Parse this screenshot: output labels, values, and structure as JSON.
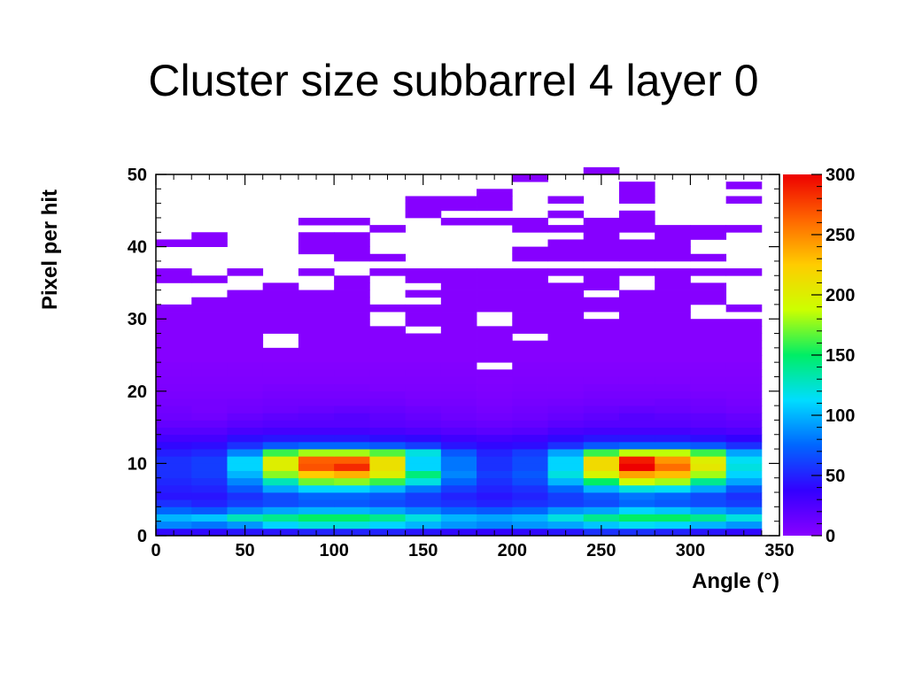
{
  "slide": {
    "title": "Cluster size subbarrel 4 layer 0"
  },
  "chart_data": {
    "type": "heatmap",
    "title": "",
    "xlabel": "Angle (°)",
    "ylabel": "Pixel per hit",
    "xlim": [
      0,
      350
    ],
    "ylim": [
      0,
      50
    ],
    "x_ticks": [
      0,
      50,
      100,
      150,
      200,
      250,
      300,
      350
    ],
    "y_ticks": [
      0,
      10,
      20,
      30,
      40,
      50
    ],
    "colorbar": {
      "range": [
        0,
        300
      ],
      "ticks": [
        0,
        50,
        100,
        150,
        200,
        250,
        300
      ],
      "palette": [
        "#8800ff",
        "#3300ff",
        "#0066ff",
        "#00ddff",
        "#00ee66",
        "#ccff00",
        "#ffcc00",
        "#ff6600",
        "#ee0000"
      ]
    },
    "x_bin_width": 20,
    "y_bin_width": 1,
    "x_bins": [
      0,
      20,
      40,
      60,
      80,
      100,
      120,
      140,
      160,
      180,
      200,
      220,
      240,
      260,
      280,
      300,
      320
    ],
    "grid": false,
    "low_rows": [
      [
        40,
        40,
        45,
        45,
        50,
        50,
        50,
        45,
        40,
        38,
        40,
        45,
        55,
        55,
        50,
        45,
        40
      ],
      [
        85,
        80,
        90,
        110,
        120,
        120,
        110,
        100,
        90,
        85,
        90,
        95,
        105,
        115,
        110,
        100,
        90
      ],
      [
        100,
        105,
        130,
        140,
        150,
        150,
        140,
        120,
        100,
        95,
        100,
        120,
        140,
        150,
        150,
        140,
        120
      ],
      [
        75,
        70,
        85,
        95,
        100,
        100,
        95,
        85,
        75,
        70,
        75,
        90,
        95,
        110,
        105,
        95,
        85
      ],
      [
        55,
        50,
        60,
        65,
        70,
        70,
        65,
        60,
        55,
        50,
        55,
        60,
        65,
        75,
        70,
        65,
        60
      ],
      [
        45,
        45,
        55,
        65,
        75,
        75,
        70,
        60,
        50,
        45,
        50,
        60,
        70,
        80,
        75,
        65,
        55
      ],
      [
        48,
        50,
        70,
        95,
        110,
        110,
        100,
        80,
        60,
        50,
        55,
        75,
        100,
        120,
        115,
        95,
        70
      ],
      [
        52,
        55,
        85,
        130,
        170,
        175,
        160,
        120,
        75,
        55,
        65,
        100,
        150,
        190,
        180,
        140,
        95
      ],
      [
        55,
        60,
        100,
        175,
        225,
        235,
        200,
        145,
        85,
        60,
        70,
        120,
        195,
        240,
        230,
        180,
        110
      ],
      [
        55,
        60,
        110,
        200,
        270,
        285,
        210,
        110,
        80,
        55,
        65,
        110,
        215,
        300,
        260,
        205,
        120
      ],
      [
        55,
        60,
        110,
        200,
        265,
        265,
        210,
        110,
        80,
        55,
        65,
        110,
        215,
        290,
        245,
        200,
        115
      ],
      [
        48,
        52,
        85,
        160,
        180,
        180,
        165,
        120,
        70,
        50,
        60,
        95,
        160,
        185,
        185,
        160,
        95
      ],
      [
        40,
        42,
        55,
        70,
        75,
        75,
        70,
        60,
        45,
        40,
        42,
        55,
        70,
        75,
        75,
        70,
        55
      ],
      [
        30,
        30,
        42,
        45,
        45,
        45,
        42,
        40,
        32,
        30,
        32,
        40,
        45,
        45,
        45,
        42,
        38
      ],
      [
        22,
        22,
        28,
        30,
        30,
        30,
        28,
        25,
        22,
        20,
        22,
        28,
        30,
        30,
        30,
        28,
        25
      ],
      [
        16,
        16,
        20,
        22,
        22,
        22,
        20,
        18,
        16,
        14,
        16,
        20,
        22,
        22,
        22,
        20,
        18
      ],
      [
        12,
        10,
        15,
        18,
        20,
        22,
        18,
        15,
        12,
        10,
        12,
        15,
        18,
        22,
        20,
        18,
        15
      ],
      [
        10,
        8,
        10,
        12,
        14,
        16,
        14,
        12,
        10,
        8,
        10,
        12,
        14,
        16,
        14,
        12,
        10
      ],
      [
        8,
        8,
        9,
        10,
        10,
        10,
        10,
        8,
        8,
        6,
        8,
        9,
        10,
        10,
        12,
        10,
        8
      ],
      [
        6,
        6,
        6,
        8,
        8,
        8,
        8,
        6,
        6,
        5,
        6,
        6,
        8,
        8,
        8,
        7,
        6
      ],
      [
        5,
        5,
        5,
        6,
        6,
        6,
        5,
        5,
        5,
        4,
        5,
        5,
        6,
        6,
        6,
        5,
        5
      ],
      [
        4,
        4,
        4,
        4,
        4,
        4,
        4,
        4,
        4,
        3,
        4,
        4,
        4,
        4,
        4,
        4,
        4
      ],
      [
        3,
        3,
        3,
        3,
        3,
        3,
        3,
        3,
        3,
        3,
        3,
        3,
        3,
        3,
        3,
        3,
        3
      ],
      [
        2,
        2,
        2,
        2,
        2,
        2,
        2,
        2,
        2,
        0,
        2,
        2,
        2,
        2,
        2,
        2,
        2
      ]
    ],
    "sparse_rows": [
      [
        24,
        [
          0,
          1,
          2,
          3,
          4,
          5,
          6,
          7,
          8,
          9,
          10,
          11,
          12,
          13,
          14,
          15,
          16
        ]
      ],
      [
        25,
        [
          0,
          1,
          2,
          3,
          4,
          5,
          6,
          7,
          8,
          9,
          10,
          11,
          12,
          13,
          14,
          15,
          16
        ]
      ],
      [
        26,
        [
          0,
          1,
          2,
          4,
          5,
          6,
          7,
          8,
          9,
          10,
          11,
          12,
          13,
          14,
          15,
          16
        ]
      ],
      [
        27,
        [
          0,
          1,
          2,
          4,
          5,
          6,
          7,
          8,
          9,
          11,
          12,
          13,
          14,
          15,
          16
        ]
      ],
      [
        28,
        [
          0,
          1,
          2,
          3,
          4,
          5,
          6,
          8,
          9,
          10,
          11,
          12,
          13,
          14,
          15,
          16
        ]
      ],
      [
        29,
        [
          0,
          1,
          2,
          3,
          4,
          5,
          7,
          8,
          10,
          11,
          12,
          13,
          14,
          15,
          16
        ]
      ],
      [
        30,
        [
          0,
          1,
          2,
          3,
          4,
          5,
          7,
          8,
          10,
          11,
          13,
          14
        ]
      ],
      [
        31,
        [
          0,
          1,
          2,
          3,
          4,
          5,
          6,
          7,
          8,
          9,
          10,
          11,
          12,
          13,
          14,
          16
        ]
      ],
      [
        32,
        [
          1,
          2,
          3,
          4,
          5,
          8,
          9,
          10,
          11,
          12,
          13,
          14,
          15
        ]
      ],
      [
        33,
        [
          2,
          3,
          4,
          5,
          7,
          8,
          9,
          10,
          11,
          13,
          14,
          15
        ]
      ],
      [
        34,
        [
          3,
          5,
          8,
          9,
          10,
          11,
          12,
          14,
          15
        ]
      ],
      [
        35,
        [
          0,
          1,
          5,
          7,
          8,
          9,
          10,
          12,
          14
        ]
      ],
      [
        36,
        [
          0,
          2,
          4,
          6,
          7,
          8,
          9,
          10,
          11,
          12,
          13,
          14,
          15,
          16
        ]
      ],
      [
        38,
        [
          5,
          6,
          10,
          11,
          12,
          13,
          14,
          15
        ]
      ],
      [
        39,
        [
          4,
          5,
          10,
          11,
          12,
          13,
          14
        ]
      ],
      [
        40,
        [
          0,
          1,
          4,
          5,
          11,
          12,
          13,
          14
        ]
      ],
      [
        41,
        [
          1,
          4,
          5,
          12,
          14,
          15
        ]
      ],
      [
        42,
        [
          6,
          10,
          11,
          12,
          13,
          14,
          15,
          16
        ]
      ],
      [
        43,
        [
          4,
          5,
          8,
          9,
          10,
          12,
          13
        ]
      ],
      [
        44,
        [
          7,
          11,
          13
        ]
      ],
      [
        45,
        [
          7,
          8,
          9
        ]
      ],
      [
        46,
        [
          7,
          8,
          9,
          11,
          13,
          16
        ]
      ],
      [
        47,
        [
          9,
          13
        ]
      ],
      [
        48,
        [
          13,
          16
        ]
      ],
      [
        49,
        [
          10
        ]
      ],
      [
        50,
        [
          12
        ]
      ]
    ]
  }
}
